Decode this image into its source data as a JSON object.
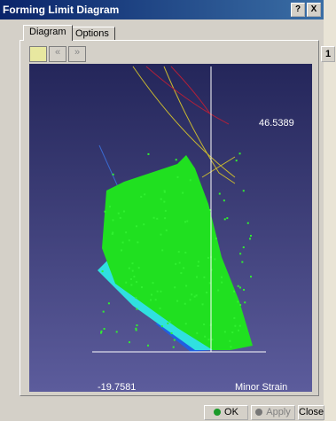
{
  "window": {
    "title": "Forming Limit Diagram",
    "help": "?",
    "close": "X"
  },
  "tabs": [
    "Diagram",
    "Options"
  ],
  "side_button": "1",
  "plot": {
    "max_label": "46.5389",
    "min_label": "-19.7581",
    "axis_label": "Minor Strain"
  },
  "buttons": [
    "OK",
    "Apply",
    "Close"
  ]
}
